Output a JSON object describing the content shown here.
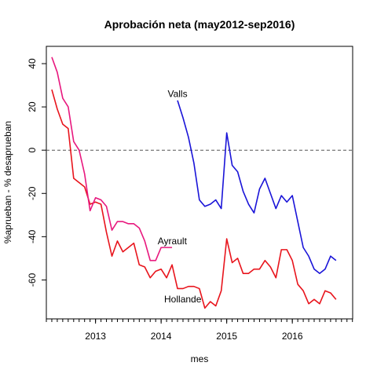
{
  "chart_data": {
    "type": "line",
    "title": "Aprobación neta (may2012-sep2016)",
    "xlabel": "mes",
    "ylabel": "%aprueban - % desaprueban",
    "xlim": [
      2012.25,
      2016.92
    ],
    "ylim": [
      -78,
      48
    ],
    "x_ticks": [
      {
        "value": 2013,
        "label": "2013"
      },
      {
        "value": 2014,
        "label": "2014"
      },
      {
        "value": 2015,
        "label": "2015"
      },
      {
        "value": 2016,
        "label": "2016"
      }
    ],
    "y_ticks": [
      {
        "value": -60,
        "label": "-60"
      },
      {
        "value": -40,
        "label": "-40"
      },
      {
        "value": -20,
        "label": "-20"
      },
      {
        "value": 0,
        "label": "0"
      },
      {
        "value": 20,
        "label": "20"
      },
      {
        "value": 40,
        "label": "40"
      }
    ],
    "reference_line": {
      "y": 0,
      "style": "dashed",
      "color": "#555555"
    },
    "grid": false,
    "series": [
      {
        "name": "Hollande",
        "color": "#e8141c",
        "x_start": "2012-05",
        "values": [
          28,
          19,
          12,
          10,
          -13,
          -15,
          -17,
          -25,
          -24,
          -25,
          -38,
          -49,
          -42,
          -47,
          -45,
          -43,
          -53,
          -54,
          -59,
          -56,
          -55,
          -59,
          -53,
          -64,
          -64,
          -63,
          -63,
          -64,
          -73,
          -70,
          -72,
          -65,
          -41,
          -52,
          -50,
          -57,
          -57,
          -55,
          -55,
          -51,
          -54,
          -59,
          -46,
          -46,
          -51,
          -62,
          -65,
          -71,
          -69,
          -71,
          -65,
          -66,
          -69
        ]
      },
      {
        "name": "Ayrault",
        "color": "#e8187e",
        "x_start": "2012-05",
        "values": [
          43,
          36,
          24,
          20,
          4,
          0,
          -11,
          -28,
          -22,
          -23,
          -26,
          -37,
          -33,
          -33,
          -34,
          -34,
          -36,
          -42,
          -51,
          -51,
          -45,
          -45,
          -45
        ]
      },
      {
        "name": "Valls",
        "color": "#1a14d8",
        "x_start": "2014-04",
        "values": [
          23,
          15,
          6,
          -6,
          -23,
          -26,
          -25,
          -23,
          -27,
          8,
          -7,
          -10,
          -19,
          -25,
          -29,
          -18,
          -13,
          -20,
          -27,
          -21,
          -24,
          -21,
          -33,
          -45,
          -49,
          -55,
          -57,
          -55,
          -49,
          -51
        ]
      }
    ],
    "annotations": [
      {
        "text": "Valls",
        "x": 2014.25,
        "y": 26
      },
      {
        "text": "Ayrault",
        "x": 2014.17,
        "y": -42
      },
      {
        "text": "Hollande",
        "x": 2014.33,
        "y": -69
      }
    ]
  }
}
